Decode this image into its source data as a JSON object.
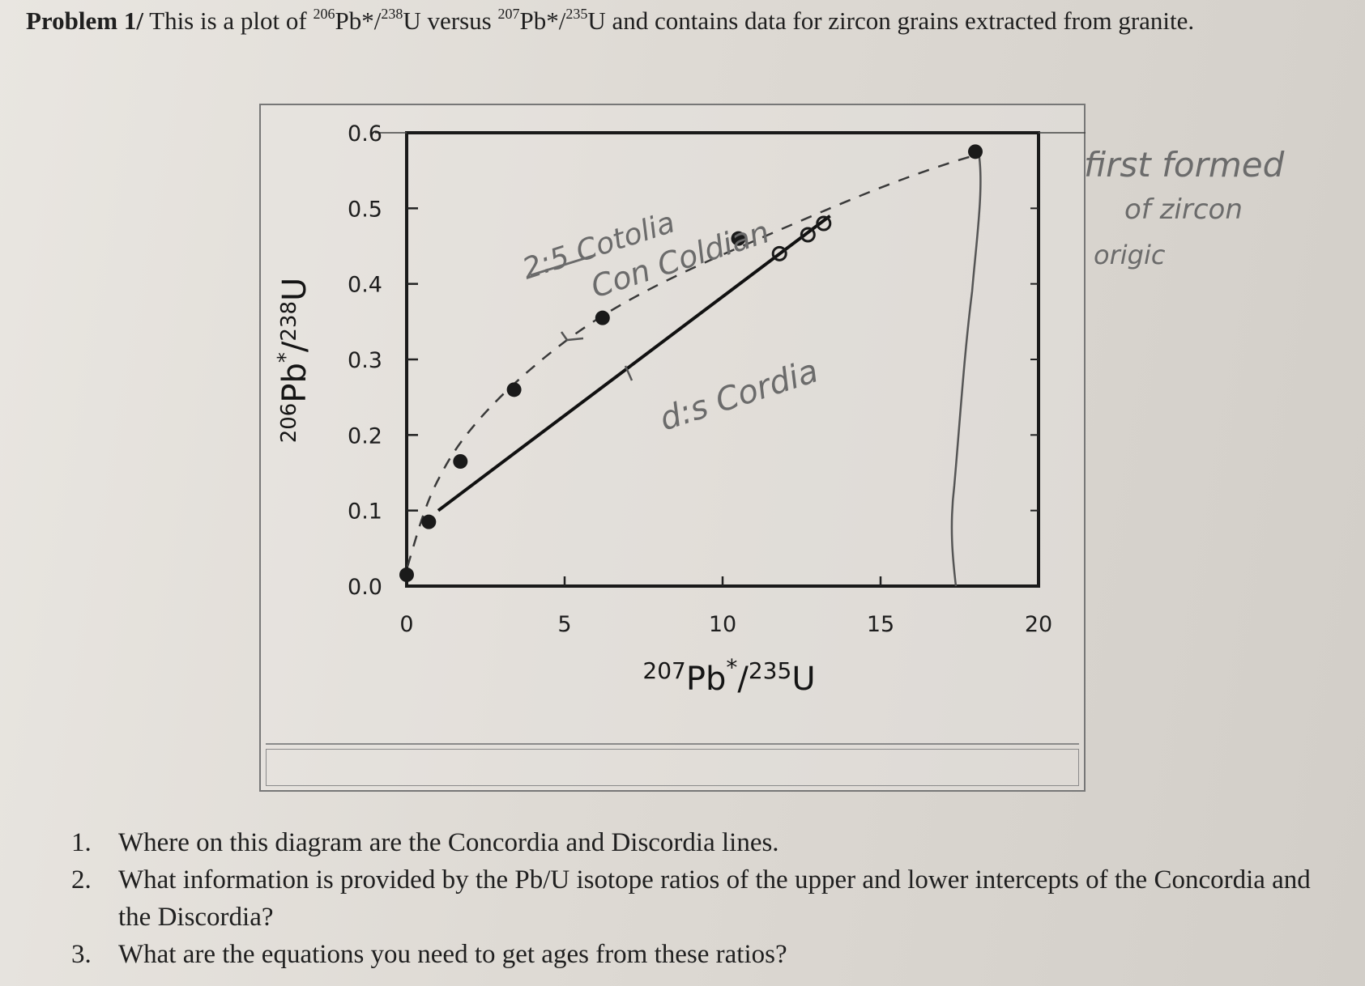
{
  "heading": {
    "prefix": "Problem 1/",
    "text_1": " This is a plot of ",
    "sup_1": "206",
    "text_2": "Pb*/",
    "sup_2": "238",
    "text_3": "U versus ",
    "sup_3": "207",
    "text_4": "Pb*/",
    "sup_4": "235",
    "text_5": "U and contains data for zircon grains extracted from granite."
  },
  "chart_data": {
    "type": "scatter",
    "xlabel_sup": "207",
    "xlabel_main": "Pb",
    "xlabel_star": "*",
    "xlabel_sep": "/",
    "xlabel_sup2": "235",
    "xlabel_end": "U",
    "ylabel_sup": "206",
    "ylabel_main": "Pb",
    "ylabel_star": "*",
    "ylabel_sep": "/",
    "ylabel_sup2": "238",
    "ylabel_end": "U",
    "xlim": [
      0,
      20
    ],
    "ylim": [
      0,
      0.6
    ],
    "x_ticks": [
      "0",
      "5",
      "10",
      "15",
      "20"
    ],
    "y_ticks": [
      "0.0",
      "0.1",
      "0.2",
      "0.3",
      "0.4",
      "0.5",
      "0.6"
    ],
    "concordia_points": [
      {
        "x": 0.0,
        "y": 0.015
      },
      {
        "x": 0.7,
        "y": 0.085
      },
      {
        "x": 1.7,
        "y": 0.165
      },
      {
        "x": 3.4,
        "y": 0.26
      },
      {
        "x": 6.2,
        "y": 0.355
      },
      {
        "x": 10.5,
        "y": 0.46
      },
      {
        "x": 18.0,
        "y": 0.575
      }
    ],
    "discordia_points": [
      {
        "x": 11.8,
        "y": 0.44
      },
      {
        "x": 12.7,
        "y": 0.465
      },
      {
        "x": 13.2,
        "y": 0.48
      }
    ],
    "discordia_line": {
      "x": [
        1.0,
        13.4
      ],
      "y": [
        0.1,
        0.49
      ]
    },
    "annotations": {
      "concordia_label": "Con Coldian",
      "concordia_struck": "2:5 Cotolia",
      "discordia_label": "d:s Cordia",
      "side_note_1": "first formed",
      "side_note_2": "of zircon",
      "side_note_3": "origic"
    }
  },
  "questions": [
    {
      "num": "1.",
      "text": "Where on this diagram are the Concordia and Discordia lines."
    },
    {
      "num": "2.",
      "text": "What information is provided by the Pb/U isotope ratios of the upper and lower intercepts of the Concordia and the Discordia?"
    },
    {
      "num": "3.",
      "text": "What are the equations you need to get ages from these ratios?"
    }
  ]
}
